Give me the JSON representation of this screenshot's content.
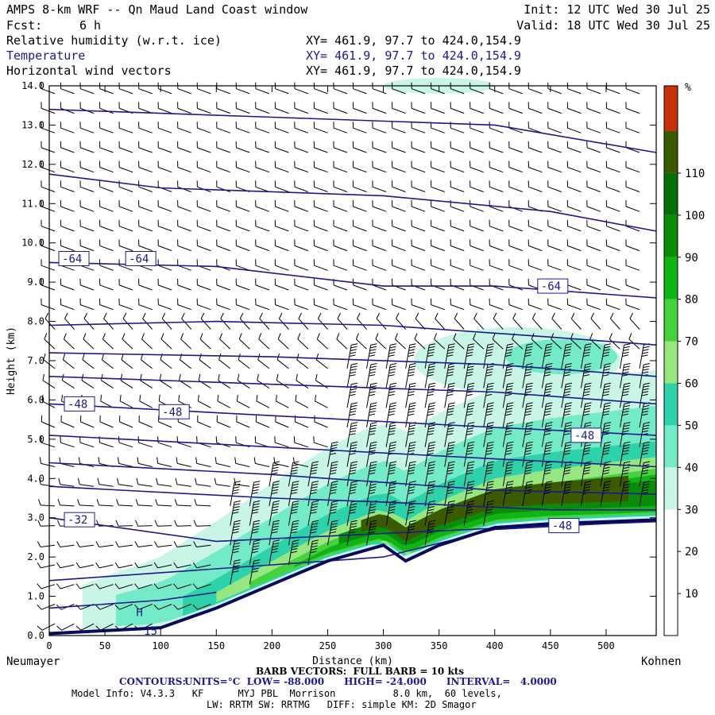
{
  "header": {
    "title": "AMPS 8-km WRF -- Qn Maud Land Coast window",
    "fcst_label": "Fcst:",
    "fcst_value": "6 h",
    "init": "Init: 12 UTC Wed 30 Jul 25",
    "valid": "Valid: 18 UTC Wed 30 Jul 25",
    "fields": [
      {
        "name": "Relative humidity (w.r.t. ice)",
        "xy": "XY= 461.9, 97.7 to 424.0,154.9"
      },
      {
        "name": "Temperature",
        "xy": "XY= 461.9, 97.7 to 424.0,154.9"
      },
      {
        "name": "Horizontal wind vectors",
        "xy": "XY= 461.9, 97.7 to 424.0,154.9"
      }
    ]
  },
  "chart_data": {
    "type": "heatmap",
    "xlabel": "Distance (km)",
    "ylabel": "Height (km)",
    "xlim": [
      0,
      545
    ],
    "ylim": [
      0,
      14
    ],
    "x_ticks": [
      0,
      50,
      100,
      150,
      200,
      250,
      300,
      350,
      400,
      450,
      500
    ],
    "y_ticks": [
      "0.0",
      "1.0",
      "2.0",
      "3.0",
      "4.0",
      "5.0",
      "6.0",
      "7.0",
      "8.0",
      "9.0",
      "10.0",
      "11.0",
      "12.0",
      "13.0",
      "14.0"
    ],
    "endpoints": {
      "left": "Neumayer",
      "right": "Kohnen"
    },
    "colorbar": {
      "unit": "%",
      "levels": [
        10,
        20,
        30,
        40,
        50,
        60,
        70,
        80,
        90,
        100,
        110
      ],
      "colors": [
        "#ffffff",
        "#ffffff",
        "#ffffff",
        "#c8f5e6",
        "#74ebc8",
        "#2ed2aa",
        "#96e682",
        "#46d23c",
        "#10b414",
        "#0a8c0a",
        "#086e08",
        "#3c5a00",
        "#c84614",
        "#c80000"
      ]
    },
    "temperature_contours": {
      "labels": [
        "-64",
        "-64",
        "-64",
        "-48",
        "-48",
        "-48",
        "-32",
        "-48"
      ],
      "units": "°C",
      "low": "-88.000",
      "high": "-24.000",
      "interval": "4.0000"
    },
    "terrain": [
      [
        0,
        0.05
      ],
      [
        100,
        0.2
      ],
      [
        150,
        0.7
      ],
      [
        200,
        1.3
      ],
      [
        250,
        1.9
      ],
      [
        300,
        2.3
      ],
      [
        320,
        1.9
      ],
      [
        350,
        2.3
      ],
      [
        400,
        2.75
      ],
      [
        450,
        2.85
      ],
      [
        500,
        2.9
      ],
      [
        545,
        2.95
      ]
    ],
    "markers": [
      {
        "text": "H"
      },
      {
        "text": "15"
      }
    ]
  },
  "footer": {
    "barb_note": "BARB VECTORS:  FULL BARB = 10 kts",
    "contours_label": "CONTOURS:",
    "contours_detail": "UNITS=°C  LOW= -88.000      HIGH= -24.000      INTERVAL=   4.0000",
    "model_info_1": "Model Info: V4.3.3   KF      MYJ PBL  Morrison          8.0 km,  60 levels,",
    "model_info_2": "LW: RRTM SW: RRTMG   DIFF: simple KM: 2D Smagor"
  }
}
